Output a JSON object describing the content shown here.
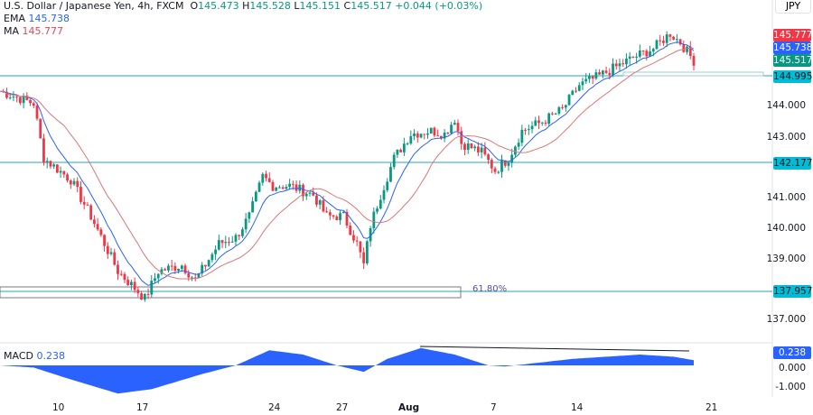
{
  "header": {
    "symbol": "U.S. Dollar / Japanese Yen, 4h, FXCM",
    "o_label": "O",
    "o": "145.473",
    "h_label": "H",
    "h": "145.528",
    "l_label": "L",
    "l": "145.151",
    "c_label": "C",
    "c": "145.517",
    "change": "+0.044 (+0.03%)"
  },
  "indicators": {
    "ema_label": "EMA",
    "ema": "145.738",
    "ma_label": "MA",
    "ma": "145.777",
    "macd_label": "MACD",
    "macd": "0.238"
  },
  "currency": "JPY",
  "price_labels": {
    "ma": "145.777",
    "ema": "145.738",
    "close": "145.517",
    "level1": "144.995",
    "level2": "142.177",
    "level3": "137.957",
    "macd": "0.238"
  },
  "price_ticks": [
    "144.000",
    "143.000",
    "141.000",
    "140.000",
    "139.000",
    "137.000"
  ],
  "macd_ticks": [
    "0.000",
    "-1.000"
  ],
  "x_ticks": [
    "10",
    "17",
    "24",
    "27",
    "Aug",
    "7",
    "14",
    "21"
  ],
  "fib_label": "61.80%",
  "colors": {
    "up": "#089981",
    "down": "#f23645",
    "ema": "#2962ff",
    "ma": "#e57373",
    "level": "#00bcd4",
    "macd": "#2962ff"
  },
  "chart_data": {
    "type": "candlestick",
    "price_path": [
      [
        0,
        144.5
      ],
      [
        10,
        144.1
      ],
      [
        13,
        142.3
      ],
      [
        21,
        141.6
      ],
      [
        27,
        140.4
      ],
      [
        35,
        138.6
      ],
      [
        43,
        137.7
      ],
      [
        47,
        138.6
      ],
      [
        54,
        138.8
      ],
      [
        58,
        138.3
      ],
      [
        65,
        139.5
      ],
      [
        70,
        139.7
      ],
      [
        74,
        140.4
      ],
      [
        78,
        141.7
      ],
      [
        81,
        141.4
      ],
      [
        86,
        141.4
      ],
      [
        93,
        141.1
      ],
      [
        97,
        140.4
      ],
      [
        102,
        140.4
      ],
      [
        106,
        139.5
      ],
      [
        108,
        138.8
      ],
      [
        110,
        140.1
      ],
      [
        113,
        141.1
      ],
      [
        117,
        142.3
      ],
      [
        122,
        143.1
      ],
      [
        128,
        143.2
      ],
      [
        132,
        143.1
      ],
      [
        135,
        143.6
      ],
      [
        137,
        142.8
      ],
      [
        143,
        142.5
      ],
      [
        147,
        141.9
      ],
      [
        151,
        142.3
      ],
      [
        155,
        143.2
      ],
      [
        161,
        143.5
      ],
      [
        167,
        143.9
      ],
      [
        172,
        144.7
      ],
      [
        178,
        145.0
      ],
      [
        183,
        145.3
      ],
      [
        188,
        145.6
      ],
      [
        194,
        145.9
      ],
      [
        199,
        146.4
      ],
      [
        202,
        146.1
      ],
      [
        206,
        145.5
      ]
    ],
    "macd_path": [
      [
        0,
        0
      ],
      [
        10,
        -0.1
      ],
      [
        20,
        -0.6
      ],
      [
        35,
        -1.3
      ],
      [
        45,
        -1.1
      ],
      [
        60,
        -0.4
      ],
      [
        70,
        0
      ],
      [
        80,
        0.7
      ],
      [
        90,
        0.5
      ],
      [
        100,
        0
      ],
      [
        108,
        -0.3
      ],
      [
        115,
        0.3
      ],
      [
        125,
        0.8
      ],
      [
        135,
        0.5
      ],
      [
        145,
        0
      ],
      [
        150,
        -0.05
      ],
      [
        170,
        0.3
      ],
      [
        190,
        0.5
      ],
      [
        200,
        0.4
      ],
      [
        206,
        0.238
      ]
    ],
    "ylim": [
      136.5,
      147
    ],
    "macd_ylim": [
      -1.5,
      1
    ]
  }
}
